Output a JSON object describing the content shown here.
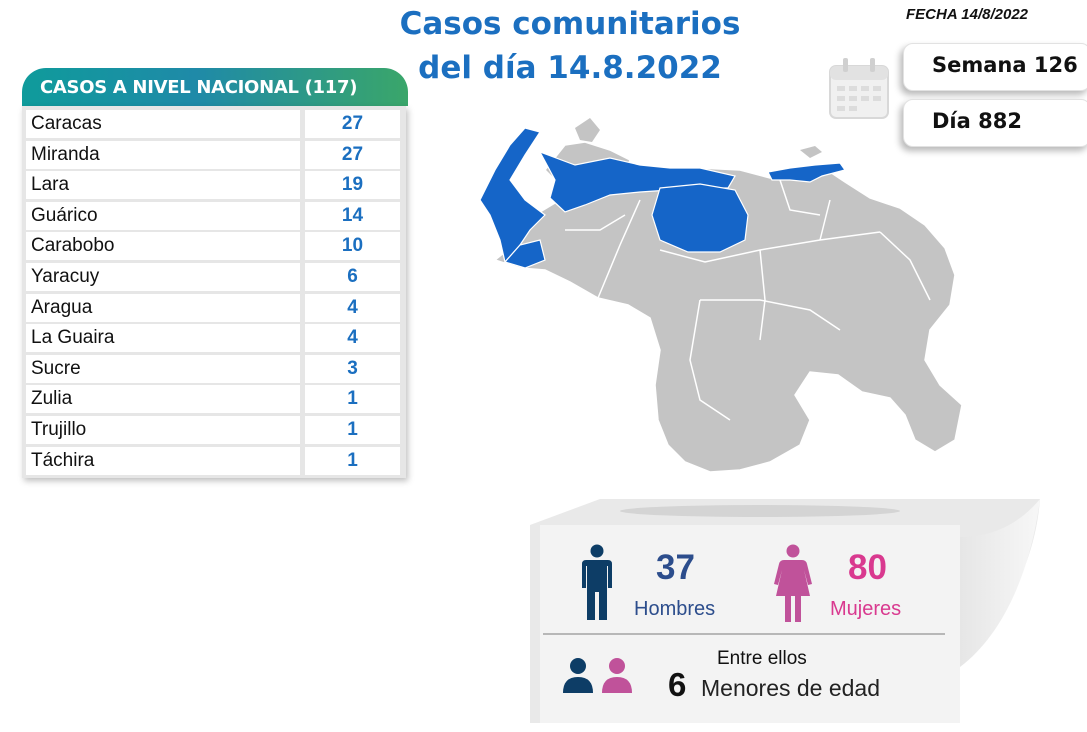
{
  "header": {
    "title_line1": "Casos comunitarios",
    "title_line2": "del día 14.8.2022",
    "fecha": "FECHA 14/8/2022",
    "semana": "Semana 126",
    "dia": "Día 882"
  },
  "table": {
    "header": "CASOS A NIVEL NACIONAL  (117)",
    "rows": [
      {
        "state": "Caracas",
        "cases": "27"
      },
      {
        "state": "Miranda",
        "cases": "27"
      },
      {
        "state": "Lara",
        "cases": "19"
      },
      {
        "state": "Guárico",
        "cases": "14"
      },
      {
        "state": "Carabobo",
        "cases": "10"
      },
      {
        "state": "Yaracuy",
        "cases": "6"
      },
      {
        "state": "Aragua",
        "cases": "4"
      },
      {
        "state": "La Guaira",
        "cases": "4"
      },
      {
        "state": "Sucre",
        "cases": "3"
      },
      {
        "state": "Zulia",
        "cases": "1"
      },
      {
        "state": "Trujillo",
        "cases": "1"
      },
      {
        "state": "Táchira",
        "cases": "1"
      }
    ]
  },
  "stats": {
    "men_count": "37",
    "men_label": "Hombres",
    "women_count": "80",
    "women_label": "Mujeres",
    "kids_intro": "Entre ellos",
    "kids_count": "6",
    "kids_label": "Menores de edad"
  },
  "colors": {
    "title_blue": "#1b6fc0",
    "highlight_state": "#1565c8",
    "other_state": "#c4c4c4",
    "men": "#0d3d66",
    "women": "#c0529a"
  },
  "icons": [
    "calendar-icon",
    "man-icon",
    "woman-icon",
    "child-boy-icon",
    "child-girl-icon"
  ]
}
